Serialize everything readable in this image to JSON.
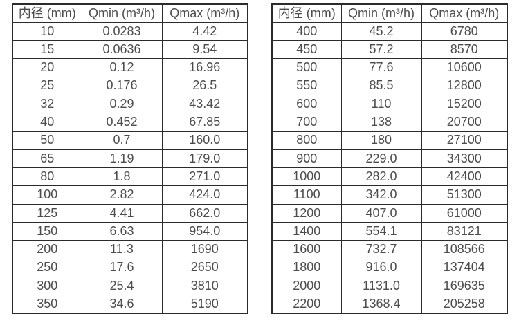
{
  "colors": {
    "background": "#ffffff",
    "border": "#2b2b2b",
    "text": "#4c4c4c"
  },
  "tables": [
    {
      "name": "small-diameter-flow-table",
      "headers": [
        "内径 (mm)",
        "Qmin (m³/h)",
        "Qmax (m³/h)"
      ],
      "rows": [
        [
          "10",
          "0.0283",
          "4.42"
        ],
        [
          "15",
          "0.0636",
          "9.54"
        ],
        [
          "20",
          "0.12",
          "16.96"
        ],
        [
          "25",
          "0.176",
          "26.5"
        ],
        [
          "32",
          "0.29",
          "43.42"
        ],
        [
          "40",
          "0.452",
          "67.85"
        ],
        [
          "50",
          "0.7",
          "160.0"
        ],
        [
          "65",
          "1.19",
          "179.0"
        ],
        [
          "80",
          "1.8",
          "271.0"
        ],
        [
          "100",
          "2.82",
          "424.0"
        ],
        [
          "125",
          "4.41",
          "662.0"
        ],
        [
          "150",
          "6.63",
          "954.0"
        ],
        [
          "200",
          "11.3",
          "1690"
        ],
        [
          "250",
          "17.6",
          "2650"
        ],
        [
          "300",
          "25.4",
          "3810"
        ],
        [
          "350",
          "34.6",
          "5190"
        ]
      ]
    },
    {
      "name": "large-diameter-flow-table",
      "headers": [
        "内径 (mm)",
        "Qmin (m³/h)",
        "Qmax (m³/h)"
      ],
      "rows": [
        [
          "400",
          "45.2",
          "6780"
        ],
        [
          "450",
          "57.2",
          "8570"
        ],
        [
          "500",
          "77.6",
          "10600"
        ],
        [
          "550",
          "85.5",
          "12800"
        ],
        [
          "600",
          "110",
          "15200"
        ],
        [
          "700",
          "138",
          "20700"
        ],
        [
          "800",
          "180",
          "27100"
        ],
        [
          "900",
          "229.0",
          "34300"
        ],
        [
          "1000",
          "282.0",
          "42400"
        ],
        [
          "1100",
          "342.0",
          "51300"
        ],
        [
          "1200",
          "407.0",
          "61000"
        ],
        [
          "1400",
          "554.1",
          "83121"
        ],
        [
          "1600",
          "732.7",
          "108566"
        ],
        [
          "1800",
          "916.0",
          "137404"
        ],
        [
          "2000",
          "1131.0",
          "169635"
        ],
        [
          "2200",
          "1368.4",
          "205258"
        ]
      ]
    }
  ]
}
